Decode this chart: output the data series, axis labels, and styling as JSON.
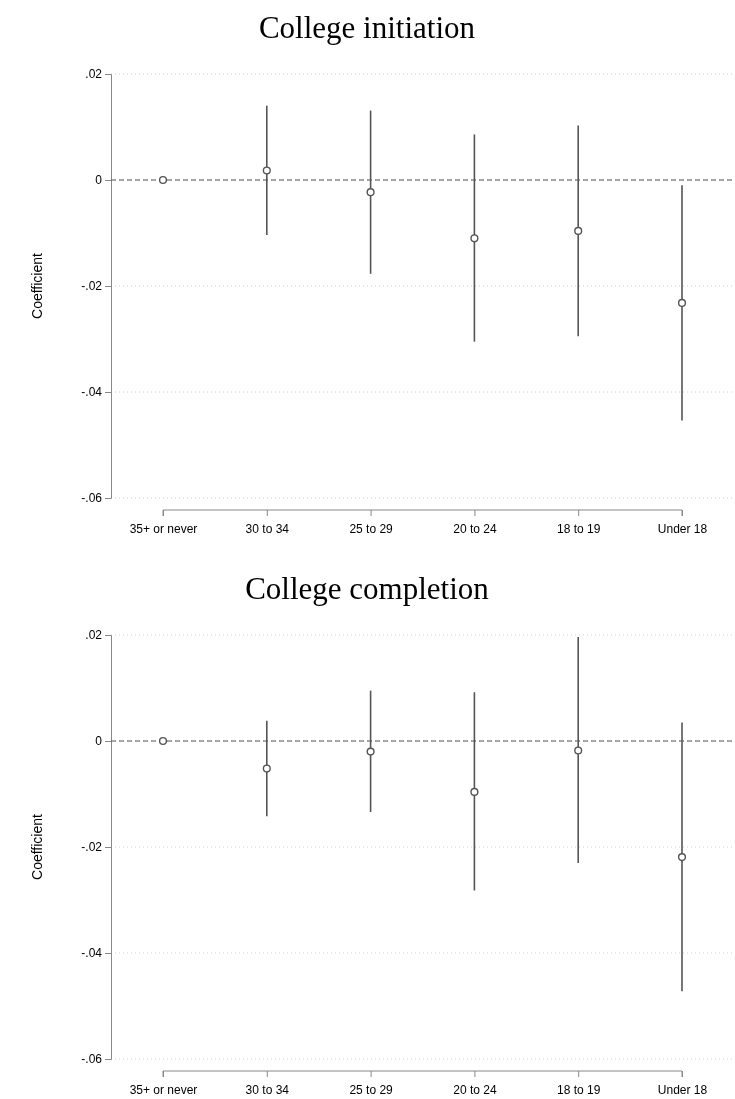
{
  "chart_data": [
    {
      "type": "scatter",
      "title": "College initiation",
      "ylabel": "Coefficient",
      "categories": [
        "35+ or never",
        "30 to 34",
        "25 to 29",
        "20 to 24",
        "18 to 19",
        "Under 18"
      ],
      "series": [
        {
          "color": "#555555",
          "values": [
            0,
            0.0018,
            -0.0023,
            -0.011,
            -0.0096,
            -0.0232
          ],
          "errors": [
            null,
            [
              -0.0104,
              0.014
            ],
            [
              -0.0177,
              0.0131
            ],
            [
              -0.0305,
              0.0086
            ],
            [
              -0.0295,
              0.0103
            ],
            [
              -0.0454,
              -0.001
            ]
          ]
        }
      ],
      "ylim": [
        -0.06,
        0.02
      ],
      "yticks": [
        {
          "value": -0.06,
          "label": "-.06"
        },
        {
          "value": -0.04,
          "label": "-.04"
        },
        {
          "value": -0.02,
          "label": "-.02"
        },
        {
          "value": 0,
          "label": "0"
        },
        {
          "value": 0.02,
          "label": ".02"
        }
      ],
      "grid": "y",
      "marker": "circle",
      "ref_lines": [
        {
          "axis": "y",
          "value": 0,
          "color": "#555555",
          "line_style": "dashed"
        }
      ]
    },
    {
      "type": "scatter",
      "title": "College completion",
      "ylabel": "Coefficient",
      "categories": [
        "35+ or never",
        "30 to 34",
        "25 to 29",
        "20 to 24",
        "18 to 19",
        "Under 18"
      ],
      "series": [
        {
          "color": "#555555",
          "values": [
            0,
            -0.0052,
            -0.002,
            -0.0096,
            -0.0018,
            -0.0219
          ],
          "errors": [
            null,
            [
              -0.0142,
              0.0038
            ],
            [
              -0.0134,
              0.0095
            ],
            [
              -0.0282,
              0.0092
            ],
            [
              -0.023,
              0.0196
            ],
            [
              -0.0472,
              0.0035
            ]
          ]
        }
      ],
      "ylim": [
        -0.06,
        0.02
      ],
      "yticks": [
        {
          "value": -0.06,
          "label": "-.06"
        },
        {
          "value": -0.04,
          "label": "-.04"
        },
        {
          "value": -0.02,
          "label": "-.02"
        },
        {
          "value": 0,
          "label": "0"
        },
        {
          "value": 0.02,
          "label": ".02"
        }
      ],
      "grid": "y",
      "marker": "circle",
      "ref_lines": [
        {
          "axis": "y",
          "value": 0,
          "color": "#555555",
          "line_style": "dashed"
        }
      ]
    }
  ]
}
